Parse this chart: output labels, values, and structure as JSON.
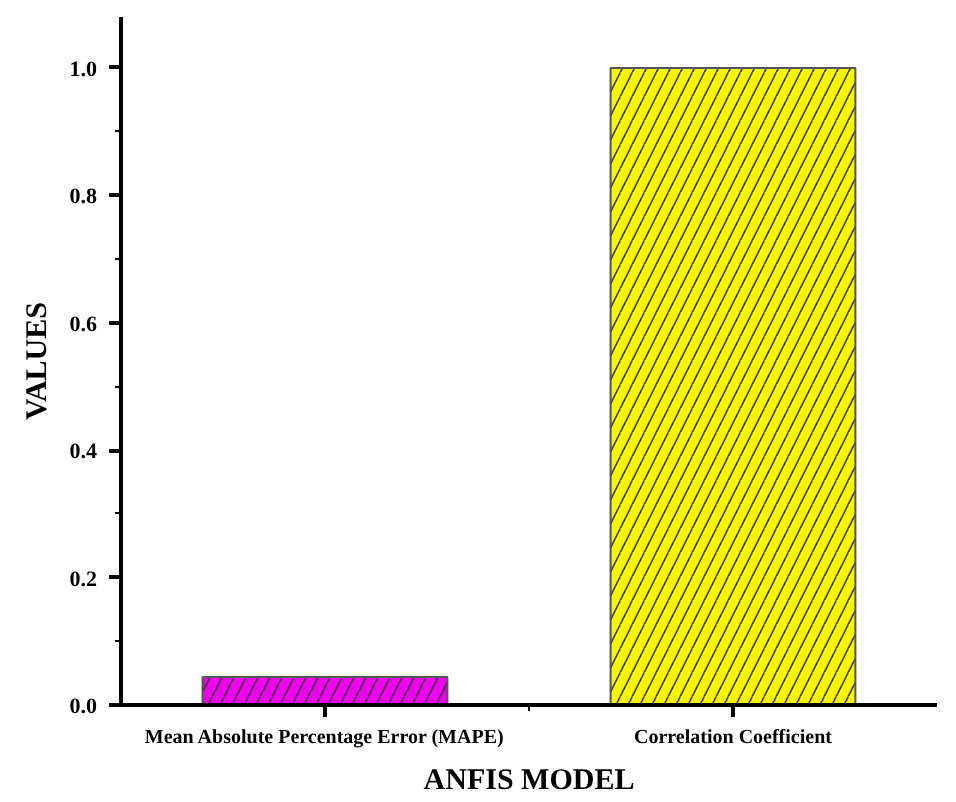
{
  "chart_data": {
    "type": "bar",
    "xlabel": "ANFIS MODEL",
    "ylabel": "VALUES",
    "categories": [
      "Mean Absolute Percentage Error (MAPE)",
      "Correlation Coefficient"
    ],
    "values": [
      0.044,
      1.0
    ],
    "colors": [
      "#ee00ee",
      "#f5f500"
    ],
    "ylim": [
      0,
      1.08
    ],
    "yticks": [
      {
        "value": 0,
        "label": "0.0"
      },
      0.2,
      0.4,
      0.6,
      0.8,
      {
        "value": 1,
        "label": "1.0"
      }
    ],
    "grid": false
  }
}
